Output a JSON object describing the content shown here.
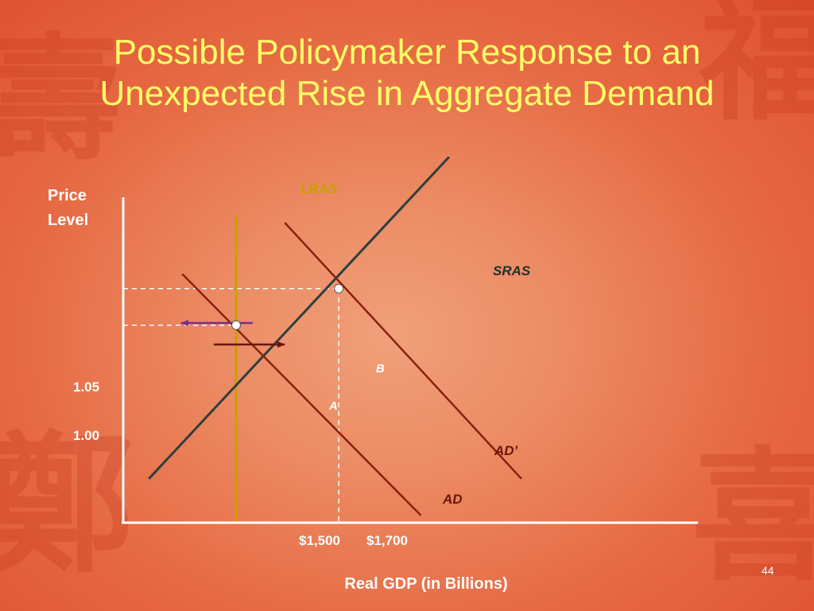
{
  "slide": {
    "title_line1": "Possible Policymaker Response to an",
    "title_line2": "Unexpected Rise in Aggregate Demand",
    "page_number": "44"
  },
  "colors": {
    "title": "#ffff66",
    "axes": "#ffffff",
    "lras": "#c8a000",
    "sras": "#2f3f3f",
    "ad": "#8a2010",
    "policy_arrow": "#7a2d8a",
    "shift_arrow": "#6a1508",
    "guides": "#ffffff"
  },
  "chart_data": {
    "type": "line",
    "ylabel_line1": "Price",
    "ylabel_line2": "Level",
    "xlabel": "Real GDP (in Billions)",
    "xlim": [
      1280,
      2400
    ],
    "ylim": [
      0.73,
      1.19
    ],
    "x_ticks": [
      {
        "value": 1500,
        "label": "$1,500"
      },
      {
        "value": 1700,
        "label": "$1,700"
      }
    ],
    "y_ticks": [
      {
        "value": 1.0,
        "label": "1.00"
      },
      {
        "value": 1.05,
        "label": "1.05"
      }
    ],
    "series": [
      {
        "name": "LRAS",
        "points": [
          [
            1500,
            0.73
          ],
          [
            1500,
            1.15
          ]
        ]
      },
      {
        "name": "SRAS",
        "points": [
          [
            1330,
            0.79
          ],
          [
            1915,
            1.23
          ]
        ]
      },
      {
        "name": "AD",
        "points": [
          [
            1395,
            1.07
          ],
          [
            1860,
            0.74
          ]
        ]
      },
      {
        "name": "AD’",
        "points": [
          [
            1595,
            1.14
          ],
          [
            2056,
            0.79
          ]
        ]
      }
    ],
    "points": [
      {
        "label": "A",
        "x": 1500,
        "y": 1.0
      },
      {
        "label": "B",
        "x": 1700,
        "y": 1.05
      }
    ],
    "annotations": [
      {
        "kind": "shift-arrow",
        "direction": "right",
        "meaning": "demand increase"
      },
      {
        "kind": "policy-arrow",
        "direction": "left",
        "meaning": "policy response"
      }
    ]
  }
}
